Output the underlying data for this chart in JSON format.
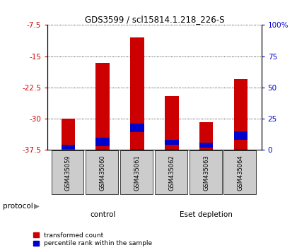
{
  "title": "GDS3599 / scl15814.1.218_226-S",
  "samples": [
    "GSM435059",
    "GSM435060",
    "GSM435061",
    "GSM435062",
    "GSM435063",
    "GSM435064"
  ],
  "red_bar_top": [
    -30.0,
    -16.5,
    -10.5,
    -24.5,
    -30.8,
    -20.5
  ],
  "red_bar_bottom": [
    -37.5,
    -37.5,
    -37.5,
    -37.5,
    -37.5,
    -37.5
  ],
  "blue_bar_top": [
    -36.2,
    -34.5,
    -31.2,
    -35.0,
    -35.8,
    -33.0
  ],
  "blue_bar_bottom": [
    -37.3,
    -36.5,
    -33.2,
    -36.2,
    -37.0,
    -35.0
  ],
  "ylim": [
    -37.5,
    -7.5
  ],
  "yticks_left": [
    -37.5,
    -30.0,
    -22.5,
    -15.0,
    -7.5
  ],
  "ytick_labels_left": [
    "-37.5",
    "-30",
    "-22.5",
    "-15",
    "-7.5"
  ],
  "yticks_right": [
    -37.5,
    -30.0,
    -22.5,
    -15.0,
    -7.5
  ],
  "ytick_labels_right": [
    "0",
    "25",
    "50",
    "75",
    "100%"
  ],
  "red_color": "#cc0000",
  "blue_color": "#0000cc",
  "control_color": "#bbffbb",
  "eset_color": "#44cc44",
  "bar_bg_color": "#cccccc",
  "left_tick_color": "#cc0000",
  "right_tick_color": "#0000cc",
  "bar_width": 0.4
}
